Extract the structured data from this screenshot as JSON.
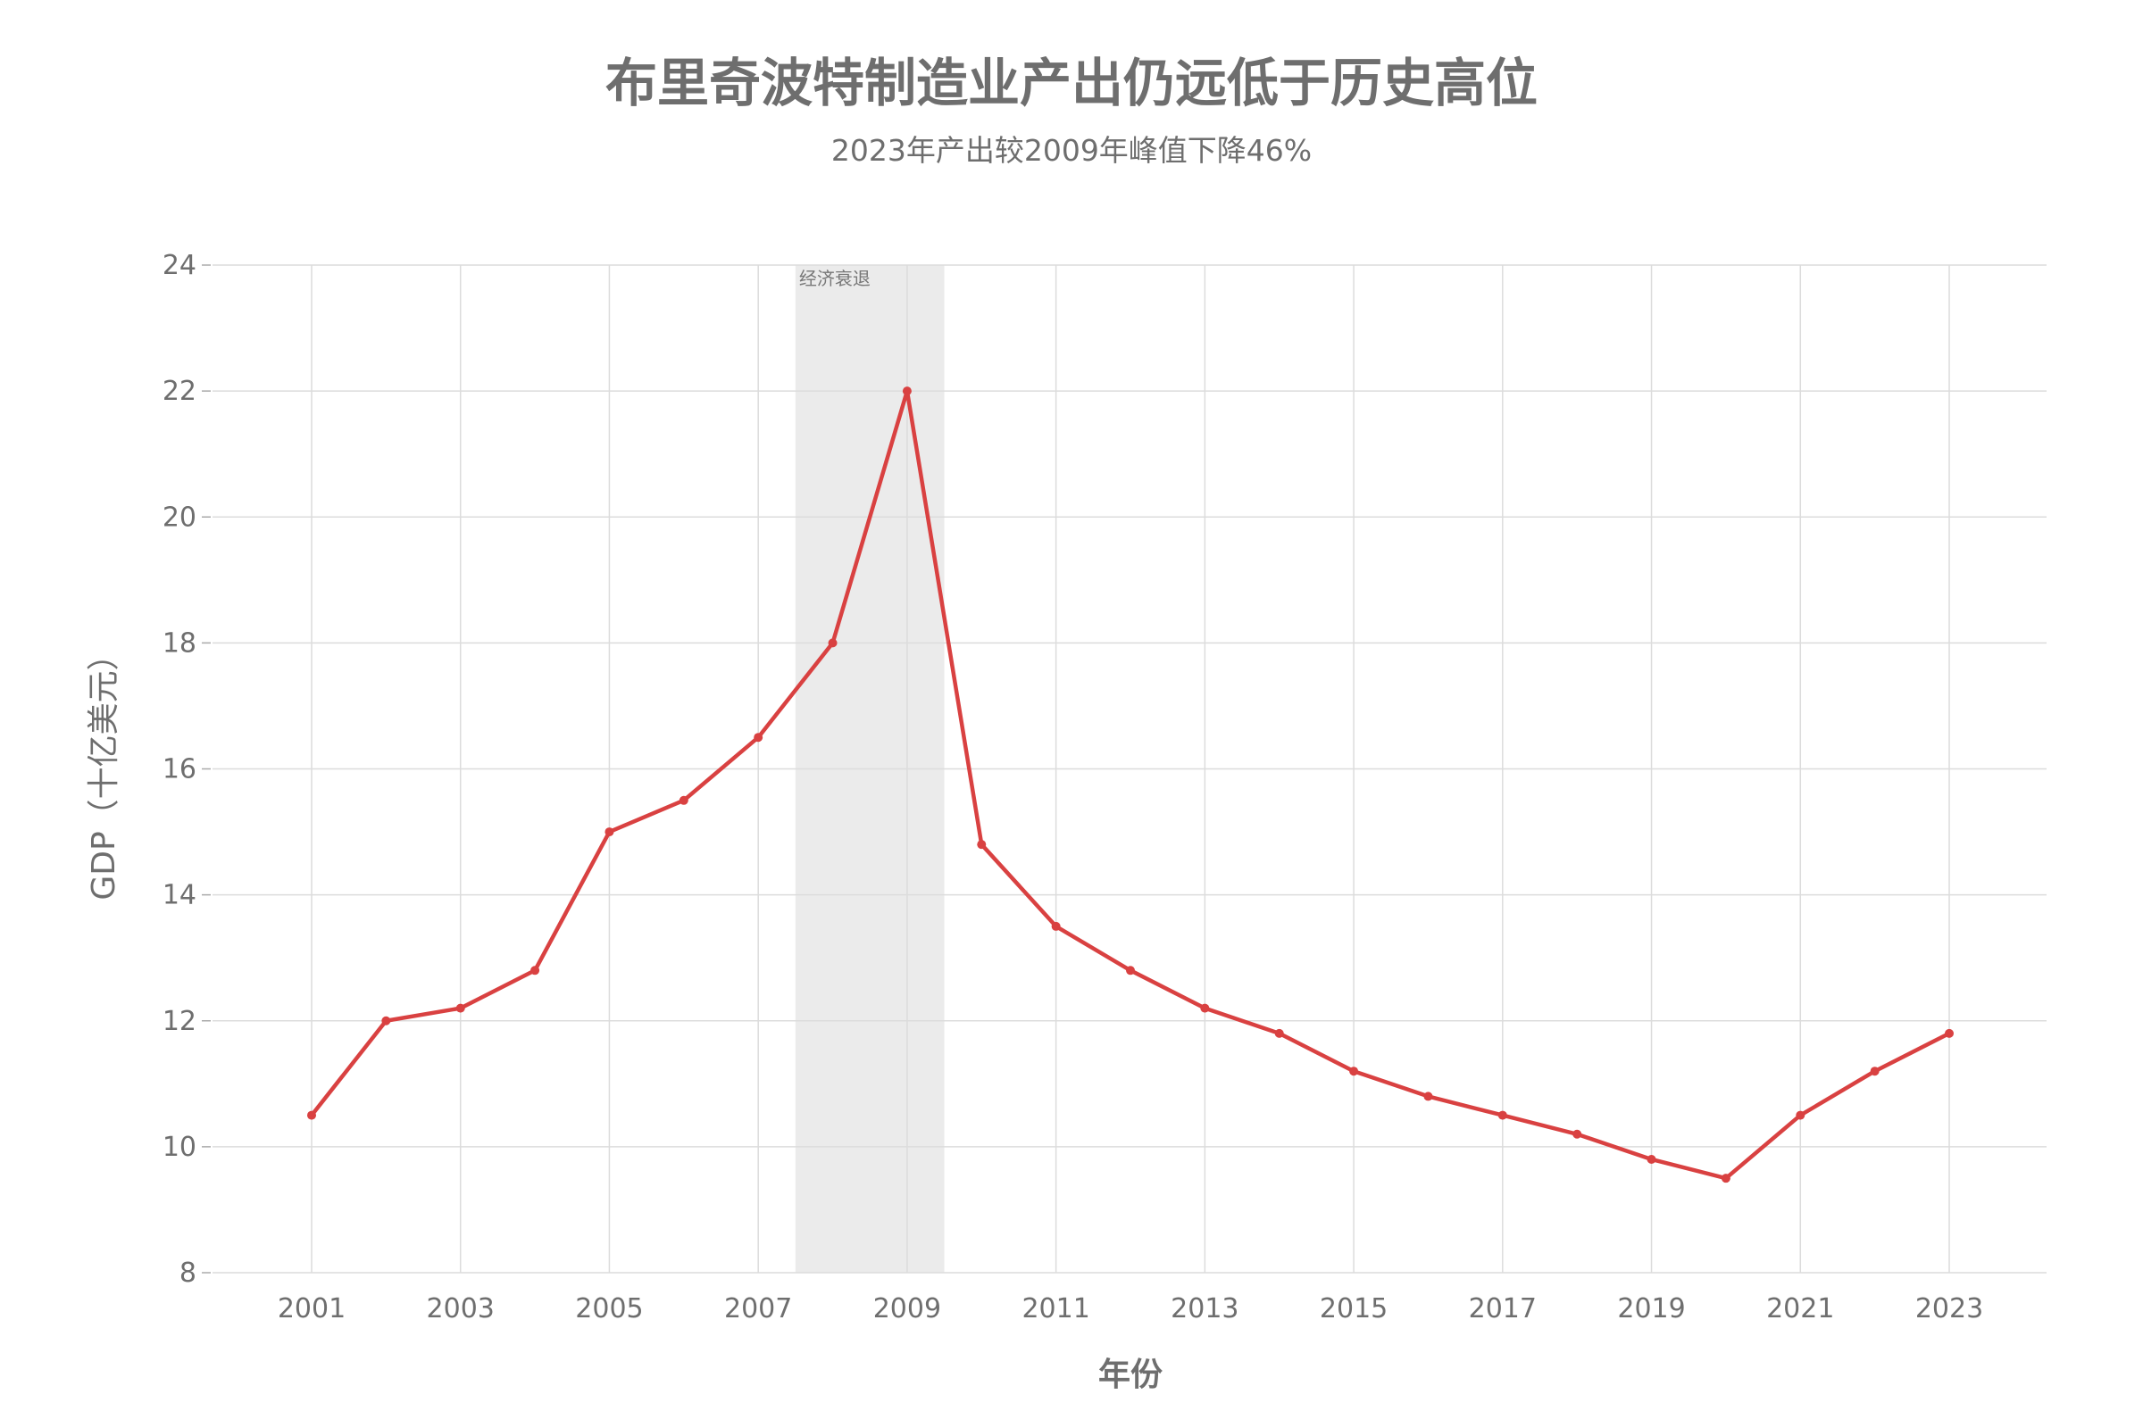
{
  "title": "布里奇波特制造业产出仍远低于历史高位",
  "subtitle": "2023年产出较2009年峰值下降46%",
  "chart_data": {
    "type": "line",
    "title": "布里奇波特制造业产出仍远低于历史高位",
    "subtitle": "2023年产出较2009年峰值下降46%",
    "xlabel": "年份",
    "ylabel": "GDP（十亿美元）",
    "x": [
      2001,
      2002,
      2003,
      2004,
      2005,
      2006,
      2007,
      2008,
      2009,
      2010,
      2011,
      2012,
      2013,
      2014,
      2015,
      2016,
      2017,
      2018,
      2019,
      2020,
      2021,
      2022,
      2023
    ],
    "series": [
      {
        "values": [
          10.5,
          12.0,
          12.2,
          12.8,
          15.0,
          15.5,
          16.5,
          18.0,
          22.0,
          14.8,
          13.5,
          12.8,
          12.2,
          11.8,
          11.2,
          10.8,
          10.5,
          10.2,
          9.8,
          9.5,
          10.5,
          11.2,
          11.8
        ],
        "color": "#d94141"
      }
    ],
    "xlim": [
      1999.7,
      2024.3
    ],
    "ylim": [
      8,
      24
    ],
    "xticks": [
      "2001",
      "2003",
      "2005",
      "2007",
      "2009",
      "2011",
      "2013",
      "2015",
      "2017",
      "2019",
      "2021",
      "2023"
    ],
    "yticks": [
      "8",
      "10",
      "12",
      "14",
      "16",
      "18",
      "20",
      "22",
      "24"
    ],
    "grid": true,
    "annotations": [
      {
        "type": "shaded-band",
        "x_start": 2007.5,
        "x_end": 2009.5,
        "label": "经济衰退",
        "color": "#ebebeb"
      }
    ]
  }
}
